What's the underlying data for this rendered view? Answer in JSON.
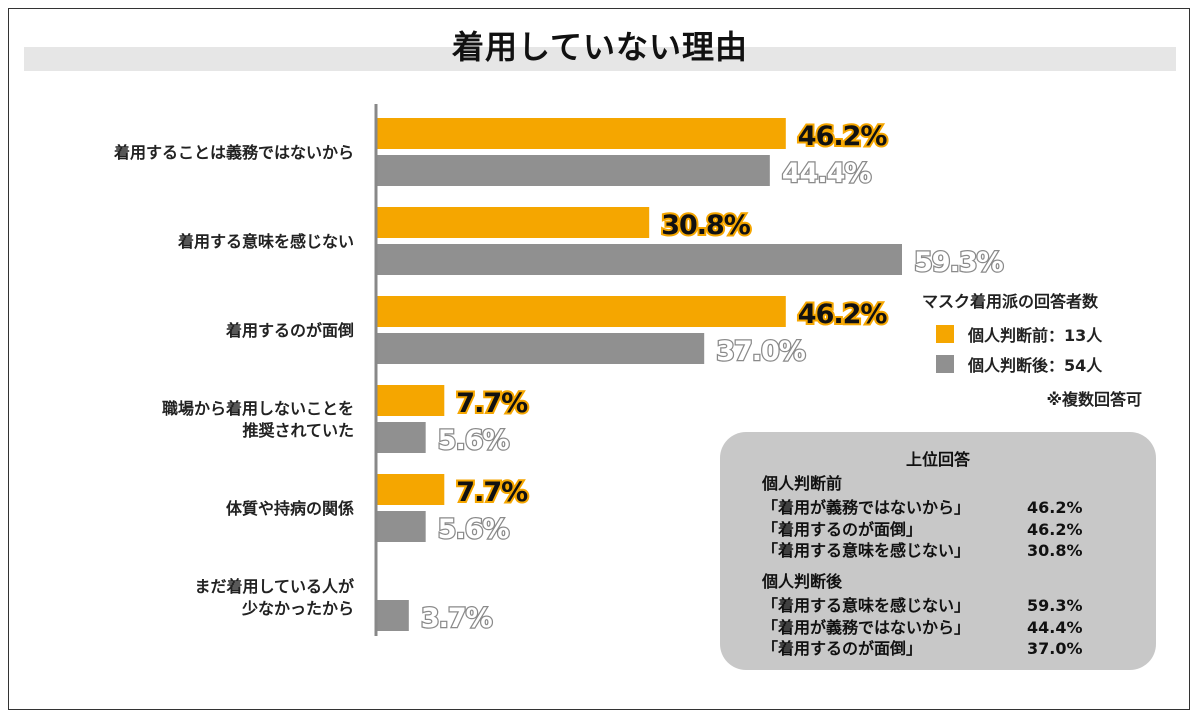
{
  "title": "着用していない理由",
  "colors": {
    "before": "#f5a600",
    "after": "#909090",
    "axis": "#888888"
  },
  "chart_data": {
    "type": "bar",
    "orientation": "horizontal",
    "categories": [
      [
        "着用することは義務ではないから"
      ],
      [
        "着用する意味を感じない"
      ],
      [
        "着用するのが面倒"
      ],
      [
        "職場から着用しないことを",
        "推奨されていた"
      ],
      [
        "体質や持病の関係"
      ],
      [
        "まだ着用している人が",
        "少なかったから"
      ]
    ],
    "series": [
      {
        "name": "個人判断前：13人",
        "color": "#f5a600",
        "values": [
          46.2,
          30.8,
          46.2,
          7.7,
          7.7,
          null
        ],
        "labels": [
          "46.2%",
          "30.8%",
          "46.2%",
          "7.7%",
          "7.7%",
          ""
        ]
      },
      {
        "name": "個人判断後：54人",
        "color": "#909090",
        "values": [
          44.4,
          59.3,
          37.0,
          5.6,
          5.6,
          3.7
        ],
        "labels": [
          "44.4%",
          "59.3%",
          "37.0%",
          "5.6%",
          "5.6%",
          "3.7%"
        ]
      }
    ],
    "xlim": [
      0,
      62
    ],
    "grid": false,
    "legend_position": "right"
  },
  "legend": {
    "title": "マスク着用派の回答者数",
    "items": [
      "個人判断前：13人",
      "個人判断後：54人"
    ],
    "note": "※複数回答可"
  },
  "panel": {
    "title": "上位回答",
    "groups": [
      {
        "heading": "個人判断前",
        "rows": [
          {
            "reason": "「着用が義務ではないから」",
            "pct": "46.2%"
          },
          {
            "reason": "「着用するのが面倒」",
            "pct": "46.2%"
          },
          {
            "reason": "「着用する意味を感じない」",
            "pct": "30.8%"
          }
        ]
      },
      {
        "heading": "個人判断後",
        "rows": [
          {
            "reason": "「着用する意味を感じない」",
            "pct": "59.3%"
          },
          {
            "reason": "「着用が義務ではないから」",
            "pct": "44.4%"
          },
          {
            "reason": "「着用するのが面倒」",
            "pct": "37.0%"
          }
        ]
      }
    ]
  }
}
